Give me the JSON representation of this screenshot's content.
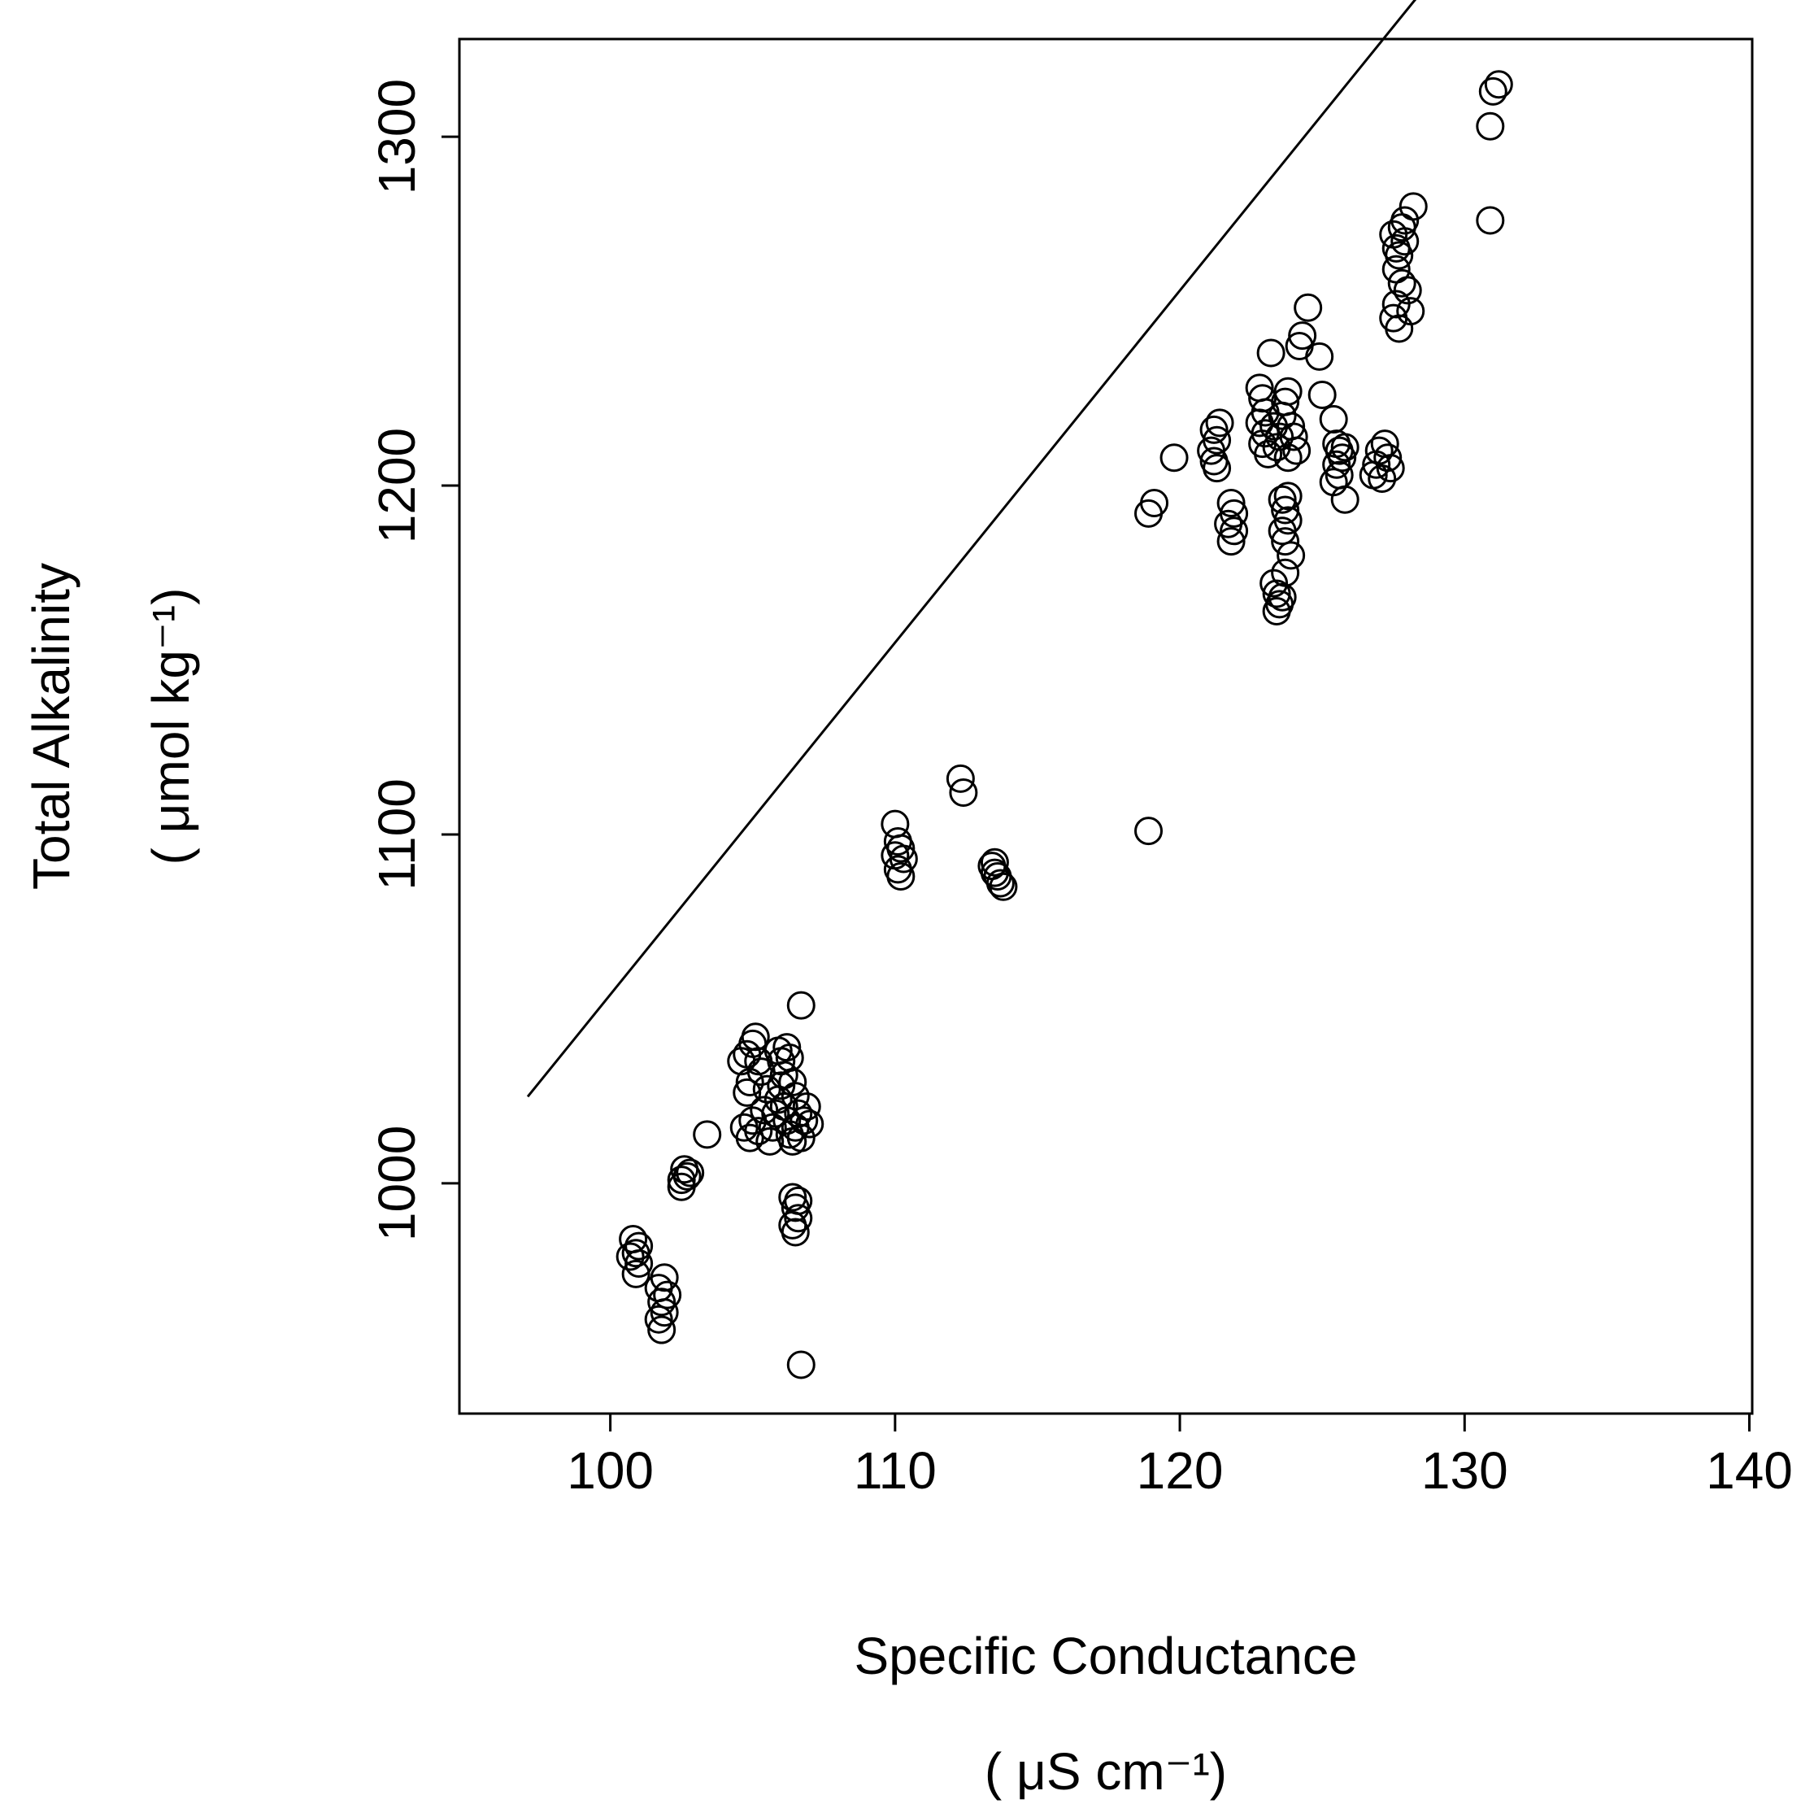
{
  "chart_data": {
    "type": "scatter",
    "title": "",
    "xlabel": "Specific Conductance",
    "xlabel_units": "( μS cm⁻¹)",
    "ylabel": "Total Alkalinity",
    "ylabel_units": "( μmol kg⁻¹)",
    "xlim": [
      94.7,
      140.1
    ],
    "ylim": [
      934,
      1328
    ],
    "x_ticks": [
      100,
      110,
      120,
      130,
      140
    ],
    "x_tick_labels": [
      "100",
      "110",
      "120",
      "130",
      "140"
    ],
    "y_ticks": [
      1000,
      1100,
      1200,
      1300
    ],
    "y_tick_labels": [
      "1000",
      "1100",
      "1200",
      "1300"
    ],
    "grid": false,
    "marker": "open-circle",
    "fit_line": {
      "slope": 10.09,
      "intercept": 45.1,
      "x_range": [
        97.1,
        135.2
      ]
    },
    "points": [
      [
        100.8,
        984
      ],
      [
        100.9,
        980
      ],
      [
        101.0,
        977
      ],
      [
        100.9,
        974
      ],
      [
        101.0,
        982
      ],
      [
        100.7,
        979
      ],
      [
        101.7,
        970
      ],
      [
        101.8,
        966
      ],
      [
        101.9,
        963
      ],
      [
        101.7,
        961
      ],
      [
        101.8,
        958
      ],
      [
        102.0,
        968
      ],
      [
        101.9,
        973
      ],
      [
        102.5,
        1001
      ],
      [
        102.6,
        1004
      ],
      [
        102.7,
        1002
      ],
      [
        102.5,
        999
      ],
      [
        102.8,
        1003
      ],
      [
        103.4,
        1014
      ],
      [
        104.6,
        1035
      ],
      [
        104.8,
        1037
      ],
      [
        105.0,
        1040
      ],
      [
        105.1,
        1042
      ],
      [
        104.9,
        1029
      ],
      [
        104.8,
        1026
      ],
      [
        104.7,
        1016
      ],
      [
        104.9,
        1013
      ],
      [
        105.0,
        1018
      ],
      [
        105.2,
        1015
      ],
      [
        105.4,
        1021
      ],
      [
        105.3,
        1032
      ],
      [
        105.5,
        1027
      ],
      [
        105.2,
        1035
      ],
      [
        105.6,
        1012
      ],
      [
        105.7,
        1016
      ],
      [
        105.8,
        1020
      ],
      [
        105.9,
        1024
      ],
      [
        106.0,
        1028
      ],
      [
        106.1,
        1031
      ],
      [
        106.0,
        1035
      ],
      [
        105.9,
        1038
      ],
      [
        106.2,
        1039
      ],
      [
        106.3,
        1036
      ],
      [
        106.1,
        1022
      ],
      [
        106.2,
        1018
      ],
      [
        106.3,
        1014
      ],
      [
        106.4,
        1012
      ],
      [
        106.5,
        1016
      ],
      [
        106.6,
        1020
      ],
      [
        106.5,
        1025
      ],
      [
        106.4,
        1029
      ],
      [
        106.7,
        1013
      ],
      [
        106.8,
        1018
      ],
      [
        106.9,
        1022
      ],
      [
        107.0,
        1017
      ],
      [
        106.7,
        1051
      ],
      [
        106.4,
        996
      ],
      [
        106.5,
        993
      ],
      [
        106.6,
        990
      ],
      [
        106.4,
        988
      ],
      [
        106.5,
        986
      ],
      [
        106.6,
        995
      ],
      [
        106.7,
        948
      ],
      [
        110.0,
        1103
      ],
      [
        110.1,
        1098
      ],
      [
        110.2,
        1096
      ],
      [
        110.0,
        1094
      ],
      [
        110.3,
        1093
      ],
      [
        110.1,
        1090
      ],
      [
        110.2,
        1088
      ],
      [
        112.3,
        1116
      ],
      [
        112.4,
        1112
      ],
      [
        113.4,
        1091
      ],
      [
        113.5,
        1089
      ],
      [
        113.6,
        1088
      ],
      [
        113.7,
        1086
      ],
      [
        113.8,
        1085
      ],
      [
        113.5,
        1092
      ],
      [
        118.9,
        1101
      ],
      [
        118.9,
        1192
      ],
      [
        119.1,
        1195
      ],
      [
        119.8,
        1208
      ],
      [
        121.2,
        1216
      ],
      [
        121.3,
        1213
      ],
      [
        121.1,
        1210
      ],
      [
        121.2,
        1207
      ],
      [
        121.3,
        1205
      ],
      [
        121.4,
        1218
      ],
      [
        121.8,
        1195
      ],
      [
        121.9,
        1192
      ],
      [
        121.7,
        1189
      ],
      [
        121.9,
        1187
      ],
      [
        121.8,
        1184
      ],
      [
        122.8,
        1228
      ],
      [
        122.9,
        1225
      ],
      [
        123.0,
        1221
      ],
      [
        122.8,
        1218
      ],
      [
        123.0,
        1215
      ],
      [
        122.9,
        1212
      ],
      [
        123.1,
        1209
      ],
      [
        123.2,
        1238
      ],
      [
        123.4,
        1211
      ],
      [
        123.5,
        1214
      ],
      [
        123.3,
        1217
      ],
      [
        123.6,
        1220
      ],
      [
        123.7,
        1224
      ],
      [
        123.8,
        1227
      ],
      [
        123.9,
        1217
      ],
      [
        124.0,
        1214
      ],
      [
        124.1,
        1210
      ],
      [
        123.8,
        1208
      ],
      [
        123.3,
        1172
      ],
      [
        123.4,
        1169
      ],
      [
        123.5,
        1166
      ],
      [
        123.4,
        1164
      ],
      [
        123.6,
        1168
      ],
      [
        123.7,
        1175
      ],
      [
        123.6,
        1196
      ],
      [
        123.7,
        1193
      ],
      [
        123.8,
        1190
      ],
      [
        123.6,
        1187
      ],
      [
        123.7,
        1184
      ],
      [
        123.9,
        1180
      ],
      [
        123.8,
        1197
      ],
      [
        124.2,
        1240
      ],
      [
        124.3,
        1243
      ],
      [
        124.5,
        1251
      ],
      [
        124.9,
        1237
      ],
      [
        125.0,
        1226
      ],
      [
        125.4,
        1219
      ],
      [
        125.5,
        1212
      ],
      [
        125.6,
        1210
      ],
      [
        125.7,
        1208
      ],
      [
        125.5,
        1206
      ],
      [
        125.8,
        1211
      ],
      [
        125.6,
        1203
      ],
      [
        125.4,
        1201
      ],
      [
        125.8,
        1196
      ],
      [
        126.8,
        1203
      ],
      [
        126.9,
        1206
      ],
      [
        127.0,
        1210
      ],
      [
        127.2,
        1212
      ],
      [
        127.3,
        1208
      ],
      [
        127.4,
        1205
      ],
      [
        127.1,
        1202
      ],
      [
        127.5,
        1248
      ],
      [
        127.6,
        1252
      ],
      [
        127.7,
        1245
      ],
      [
        127.8,
        1258
      ],
      [
        127.6,
        1262
      ],
      [
        127.7,
        1266
      ],
      [
        127.9,
        1270
      ],
      [
        127.5,
        1272
      ],
      [
        127.8,
        1274
      ],
      [
        127.6,
        1268
      ],
      [
        128.0,
        1256
      ],
      [
        128.1,
        1250
      ],
      [
        127.9,
        1276
      ],
      [
        128.2,
        1280
      ],
      [
        130.9,
        1276
      ],
      [
        130.9,
        1303
      ],
      [
        131.0,
        1313
      ],
      [
        131.2,
        1315
      ]
    ]
  }
}
